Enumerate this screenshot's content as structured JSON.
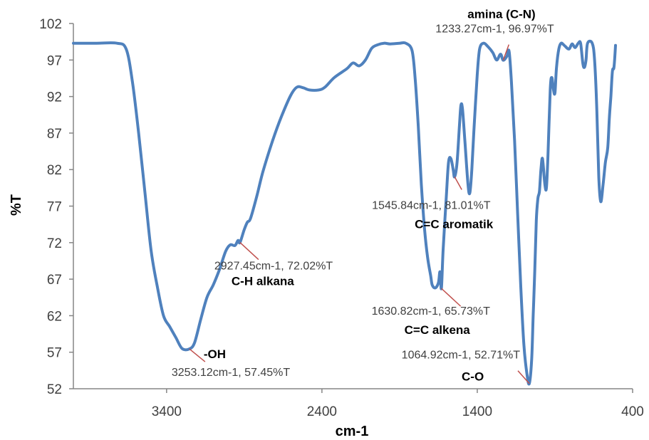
{
  "chart_data": {
    "type": "line",
    "title": "",
    "xlabel": "cm-1",
    "ylabel": "%T",
    "xlim": [
      4000,
      400
    ],
    "ylim": [
      52,
      102
    ],
    "x_reversed": true,
    "grid": false,
    "legend": "none",
    "x_ticks": [
      3400,
      2400,
      1400,
      400
    ],
    "y_ticks": [
      52,
      57,
      62,
      67,
      72,
      77,
      82,
      87,
      92,
      97,
      102
    ],
    "series": [
      {
        "color": "#4f81bd",
        "points": [
          [
            4000,
            99.3
          ],
          [
            3850,
            99.3
          ],
          [
            3720,
            99.3
          ],
          [
            3660,
            98.5
          ],
          [
            3620,
            94
          ],
          [
            3580,
            87
          ],
          [
            3540,
            79
          ],
          [
            3500,
            71
          ],
          [
            3460,
            66
          ],
          [
            3420,
            62
          ],
          [
            3380,
            60.5
          ],
          [
            3340,
            59
          ],
          [
            3300,
            57.5
          ],
          [
            3253.12,
            57.45
          ],
          [
            3220,
            58.3
          ],
          [
            3180,
            61.5
          ],
          [
            3140,
            64.5
          ],
          [
            3100,
            66.2
          ],
          [
            3060,
            68.3
          ],
          [
            3020,
            70.8
          ],
          [
            2990,
            71.7
          ],
          [
            2960,
            71.6
          ],
          [
            2940,
            72.3
          ],
          [
            2927.45,
            72.02
          ],
          [
            2900,
            73.8
          ],
          [
            2880,
            74.8
          ],
          [
            2860,
            75.3
          ],
          [
            2820,
            78.3
          ],
          [
            2780,
            81.7
          ],
          [
            2720,
            85.8
          ],
          [
            2660,
            89.3
          ],
          [
            2600,
            92.2
          ],
          [
            2560,
            93.3
          ],
          [
            2520,
            93.2
          ],
          [
            2480,
            92.9
          ],
          [
            2420,
            92.9
          ],
          [
            2380,
            93.3
          ],
          [
            2320,
            94.6
          ],
          [
            2240,
            95.8
          ],
          [
            2200,
            96.6
          ],
          [
            2160,
            96.2
          ],
          [
            2120,
            97
          ],
          [
            2080,
            98.6
          ],
          [
            2040,
            99.1
          ],
          [
            2000,
            99.3
          ],
          [
            1960,
            99.2
          ],
          [
            1900,
            99.3
          ],
          [
            1860,
            99.3
          ],
          [
            1820,
            98.3
          ],
          [
            1800,
            94.5
          ],
          [
            1780,
            88
          ],
          [
            1760,
            80
          ],
          [
            1740,
            74
          ],
          [
            1720,
            70
          ],
          [
            1700,
            67.5
          ],
          [
            1690,
            66.2
          ],
          [
            1670,
            65.8
          ],
          [
            1650,
            66.5
          ],
          [
            1640,
            68
          ],
          [
            1630.82,
            65.73
          ],
          [
            1620,
            71
          ],
          [
            1600,
            78
          ],
          [
            1585,
            83
          ],
          [
            1570,
            83.5
          ],
          [
            1555,
            82
          ],
          [
            1545.84,
            81.01
          ],
          [
            1530,
            83
          ],
          [
            1515,
            88
          ],
          [
            1505,
            90.8
          ],
          [
            1495,
            90.3
          ],
          [
            1480,
            86
          ],
          [
            1460,
            80
          ],
          [
            1448,
            78.8
          ],
          [
            1435,
            82
          ],
          [
            1420,
            88
          ],
          [
            1400,
            95
          ],
          [
            1385,
            98.5
          ],
          [
            1360,
            99.3
          ],
          [
            1330,
            98.8
          ],
          [
            1300,
            98
          ],
          [
            1275,
            97
          ],
          [
            1250,
            97.8
          ],
          [
            1233.27,
            96.97
          ],
          [
            1210,
            97.5
          ],
          [
            1195,
            98.2
          ],
          [
            1180,
            94
          ],
          [
            1160,
            86
          ],
          [
            1140,
            76
          ],
          [
            1120,
            66
          ],
          [
            1100,
            58
          ],
          [
            1080,
            54
          ],
          [
            1064.92,
            52.71
          ],
          [
            1050,
            56
          ],
          [
            1040,
            62
          ],
          [
            1030,
            68
          ],
          [
            1020,
            75
          ],
          [
            1010,
            78
          ],
          [
            1000,
            79
          ],
          [
            990,
            82
          ],
          [
            980,
            83.5
          ],
          [
            965,
            80
          ],
          [
            955,
            79.5
          ],
          [
            945,
            84
          ],
          [
            930,
            93
          ],
          [
            920,
            94.6
          ],
          [
            910,
            93
          ],
          [
            900,
            92.5
          ],
          [
            890,
            96
          ],
          [
            875,
            98.5
          ],
          [
            860,
            99.3
          ],
          [
            840,
            99
          ],
          [
            810,
            98.5
          ],
          [
            790,
            99.2
          ],
          [
            770,
            98.7
          ],
          [
            750,
            99.3
          ],
          [
            735,
            99.3
          ],
          [
            720,
            96.5
          ],
          [
            710,
            96
          ],
          [
            700,
            97
          ],
          [
            690,
            99.3
          ],
          [
            660,
            99.3
          ],
          [
            645,
            97
          ],
          [
            630,
            90
          ],
          [
            618,
            81
          ],
          [
            605,
            77.6
          ],
          [
            590,
            80
          ],
          [
            575,
            83
          ],
          [
            560,
            85
          ],
          [
            550,
            89
          ],
          [
            540,
            92
          ],
          [
            530,
            95.5
          ],
          [
            520,
            96
          ],
          [
            510,
            99
          ]
        ]
      }
    ],
    "annotations": [
      {
        "value_label": "3253.12cm-1, 57.45%T",
        "group_label": "-OH",
        "x": 3253.12,
        "y": 57.45
      },
      {
        "value_label": "2927.45cm-1, 72.02%T",
        "group_label": "C-H alkana",
        "x": 2927.45,
        "y": 72.02
      },
      {
        "value_label": "1545.84cm-1, 81.01%T",
        "group_label": "C=C aromatik",
        "x": 1545.84,
        "y": 81.01
      },
      {
        "value_label": "1630.82cm-1, 65.73%T",
        "group_label": "C=C alkena",
        "x": 1630.82,
        "y": 65.73
      },
      {
        "value_label": "1064.92cm-1, 52.71%T",
        "group_label": "C-O",
        "x": 1064.92,
        "y": 52.71
      },
      {
        "value_label": "1233.27cm-1, 96.97%T",
        "group_label": "amina (C-N)",
        "x": 1233.27,
        "y": 96.97
      }
    ]
  }
}
